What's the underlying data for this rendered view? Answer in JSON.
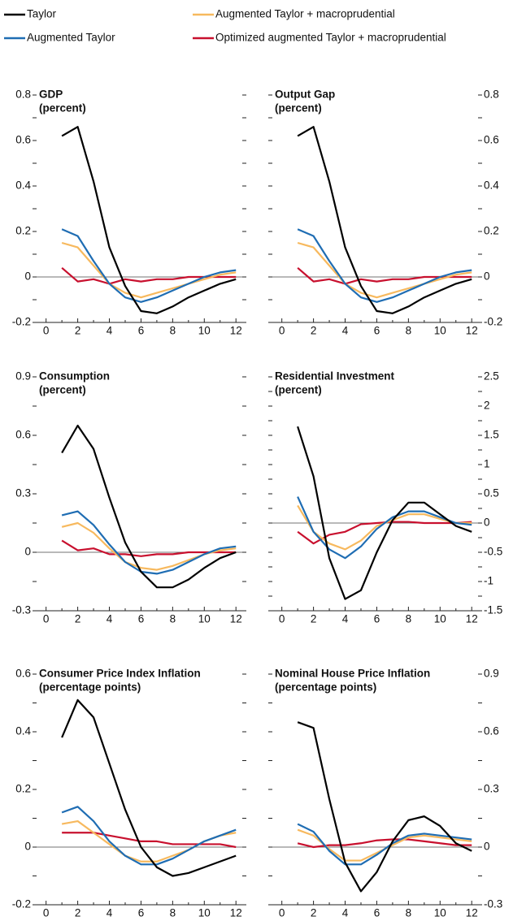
{
  "chart_data": [
    {
      "type": "line",
      "title": "GDP",
      "subtitle": "(percent)",
      "yaxis": "left",
      "x": [
        1,
        2,
        3,
        4,
        5,
        6,
        7,
        8,
        9,
        10,
        11,
        12
      ],
      "xlim": [
        -0.6,
        12.4
      ],
      "xticks": [
        0,
        2,
        4,
        6,
        8,
        10,
        12
      ],
      "xminor": [
        1,
        3,
        5,
        7,
        9,
        11
      ],
      "ylim": [
        -0.2,
        0.8
      ],
      "yticks": [
        -0.2,
        0,
        0.2,
        0.4,
        0.6,
        0.8
      ],
      "yminor": [
        -0.1,
        0.1,
        0.3,
        0.5,
        0.7
      ],
      "series": [
        {
          "name": "Taylor",
          "color": "#000000",
          "values": [
            0.62,
            0.66,
            0.42,
            0.13,
            -0.04,
            -0.15,
            -0.16,
            -0.13,
            -0.09,
            -0.06,
            -0.03,
            -0.01
          ]
        },
        {
          "name": "Augmented Taylor",
          "color": "#1f6db3",
          "values": [
            0.21,
            0.18,
            0.07,
            -0.03,
            -0.09,
            -0.11,
            -0.09,
            -0.06,
            -0.03,
            0.0,
            0.02,
            0.03
          ]
        },
        {
          "name": "Augmented Taylor + macroprudential",
          "color": "#f7b95e",
          "values": [
            0.15,
            0.13,
            0.05,
            -0.03,
            -0.07,
            -0.09,
            -0.07,
            -0.05,
            -0.03,
            -0.01,
            0.01,
            0.02
          ]
        },
        {
          "name": "Optimized augmented Taylor + macroprudential",
          "color": "#c8102e",
          "values": [
            0.04,
            -0.02,
            -0.01,
            -0.03,
            -0.01,
            -0.02,
            -0.01,
            -0.01,
            0.0,
            0.0,
            0.0,
            0.0
          ]
        }
      ]
    },
    {
      "type": "line",
      "title": "Output Gap",
      "subtitle": "(percent)",
      "yaxis": "right",
      "x": [
        1,
        2,
        3,
        4,
        5,
        6,
        7,
        8,
        9,
        10,
        11,
        12
      ],
      "xlim": [
        -0.6,
        12.4
      ],
      "xticks": [
        0,
        2,
        4,
        6,
        8,
        10,
        12
      ],
      "xminor": [
        1,
        3,
        5,
        7,
        9,
        11
      ],
      "ylim": [
        -0.2,
        0.8
      ],
      "yticks": [
        -0.2,
        0,
        0.2,
        0.4,
        0.6,
        0.8
      ],
      "yminor": [
        -0.1,
        0.1,
        0.3,
        0.5,
        0.7
      ],
      "series": [
        {
          "name": "Taylor",
          "color": "#000000",
          "values": [
            0.62,
            0.66,
            0.42,
            0.13,
            -0.04,
            -0.15,
            -0.16,
            -0.13,
            -0.09,
            -0.06,
            -0.03,
            -0.01
          ]
        },
        {
          "name": "Augmented Taylor",
          "color": "#1f6db3",
          "values": [
            0.21,
            0.18,
            0.07,
            -0.03,
            -0.09,
            -0.11,
            -0.09,
            -0.06,
            -0.03,
            0.0,
            0.02,
            0.03
          ]
        },
        {
          "name": "Augmented Taylor + macroprudential",
          "color": "#f7b95e",
          "values": [
            0.15,
            0.13,
            0.05,
            -0.03,
            -0.07,
            -0.09,
            -0.07,
            -0.05,
            -0.03,
            -0.01,
            0.01,
            0.02
          ]
        },
        {
          "name": "Optimized augmented Taylor + macroprudential",
          "color": "#c8102e",
          "values": [
            0.04,
            -0.02,
            -0.01,
            -0.03,
            -0.01,
            -0.02,
            -0.01,
            -0.01,
            0.0,
            0.0,
            0.0,
            0.0
          ]
        }
      ]
    },
    {
      "type": "line",
      "title": "Consumption",
      "subtitle": "(percent)",
      "yaxis": "left",
      "x": [
        1,
        2,
        3,
        4,
        5,
        6,
        7,
        8,
        9,
        10,
        11,
        12
      ],
      "xlim": [
        -0.6,
        12.4
      ],
      "xticks": [
        0,
        2,
        4,
        6,
        8,
        10,
        12
      ],
      "xminor": [
        1,
        3,
        5,
        7,
        9,
        11
      ],
      "ylim": [
        -0.3,
        0.9
      ],
      "yticks": [
        -0.3,
        0,
        0.3,
        0.6,
        0.9
      ],
      "yminor": [
        -0.15,
        0.15,
        0.45,
        0.75
      ],
      "series": [
        {
          "name": "Taylor",
          "color": "#000000",
          "values": [
            0.51,
            0.65,
            0.53,
            0.28,
            0.05,
            -0.1,
            -0.18,
            -0.18,
            -0.14,
            -0.08,
            -0.03,
            0.0
          ]
        },
        {
          "name": "Augmented Taylor",
          "color": "#1f6db3",
          "values": [
            0.19,
            0.21,
            0.14,
            0.04,
            -0.05,
            -0.1,
            -0.11,
            -0.09,
            -0.05,
            -0.01,
            0.02,
            0.03
          ]
        },
        {
          "name": "Augmented Taylor + macroprudential",
          "color": "#f7b95e",
          "values": [
            0.13,
            0.15,
            0.1,
            0.02,
            -0.05,
            -0.08,
            -0.09,
            -0.07,
            -0.04,
            -0.01,
            0.01,
            0.02
          ]
        },
        {
          "name": "Optimized augmented Taylor + macroprudential",
          "color": "#c8102e",
          "values": [
            0.06,
            0.01,
            0.02,
            -0.01,
            -0.01,
            -0.02,
            -0.01,
            -0.01,
            0.0,
            0.0,
            0.0,
            0.0
          ]
        }
      ]
    },
    {
      "type": "line",
      "title": "Residential Investment",
      "subtitle": "(percent)",
      "yaxis": "right",
      "x": [
        1,
        2,
        3,
        4,
        5,
        6,
        7,
        8,
        9,
        10,
        11,
        12
      ],
      "xlim": [
        -0.6,
        12.4
      ],
      "xticks": [
        0,
        2,
        4,
        6,
        8,
        10,
        12
      ],
      "xminor": [
        1,
        3,
        5,
        7,
        9,
        11
      ],
      "ylim": [
        -1.5,
        2.5
      ],
      "yticks": [
        -1.5,
        -1.0,
        -0.5,
        0,
        0.5,
        1.0,
        1.5,
        2.0,
        2.5
      ],
      "yminor": [
        -1.25,
        -0.75,
        -0.25,
        0.25,
        0.75,
        1.25,
        1.75,
        2.25
      ],
      "series": [
        {
          "name": "Taylor",
          "color": "#000000",
          "values": [
            1.65,
            0.8,
            -0.6,
            -1.3,
            -1.15,
            -0.5,
            0.05,
            0.35,
            0.35,
            0.15,
            -0.05,
            -0.15
          ]
        },
        {
          "name": "Augmented Taylor",
          "color": "#1f6db3",
          "values": [
            0.45,
            -0.15,
            -0.45,
            -0.6,
            -0.4,
            -0.1,
            0.1,
            0.2,
            0.2,
            0.1,
            0.0,
            -0.03
          ]
        },
        {
          "name": "Augmented Taylor + macroprudential",
          "color": "#f7b95e",
          "values": [
            0.3,
            -0.15,
            -0.35,
            -0.45,
            -0.3,
            -0.05,
            0.05,
            0.15,
            0.15,
            0.07,
            0.0,
            0.0
          ]
        },
        {
          "name": "Optimized augmented Taylor + macroprudential",
          "color": "#c8102e",
          "values": [
            -0.15,
            -0.35,
            -0.2,
            -0.15,
            -0.02,
            0.0,
            0.02,
            0.02,
            0.0,
            0.0,
            0.0,
            0.02
          ]
        }
      ]
    },
    {
      "type": "line",
      "title": "Consumer Price Index Inflation",
      "subtitle": "(percentage points)",
      "yaxis": "left",
      "x": [
        1,
        2,
        3,
        4,
        5,
        6,
        7,
        8,
        9,
        10,
        11,
        12
      ],
      "xlim": [
        -0.6,
        12.4
      ],
      "xticks": [
        0,
        2,
        4,
        6,
        8,
        10,
        12
      ],
      "xminor": [
        1,
        3,
        5,
        7,
        9,
        11
      ],
      "ylim": [
        -0.2,
        0.6
      ],
      "yticks": [
        -0.2,
        0,
        0.2,
        0.4,
        0.6
      ],
      "yminor": [
        -0.1,
        0.1,
        0.3,
        0.5
      ],
      "series": [
        {
          "name": "Taylor",
          "color": "#000000",
          "values": [
            0.38,
            0.51,
            0.45,
            0.29,
            0.13,
            0.0,
            -0.07,
            -0.1,
            -0.09,
            -0.07,
            -0.05,
            -0.03
          ]
        },
        {
          "name": "Augmented Taylor",
          "color": "#1f6db3",
          "values": [
            0.12,
            0.14,
            0.09,
            0.02,
            -0.03,
            -0.06,
            -0.06,
            -0.04,
            -0.01,
            0.02,
            0.04,
            0.06
          ]
        },
        {
          "name": "Augmented Taylor + macroprudential",
          "color": "#f7b95e",
          "values": [
            0.08,
            0.09,
            0.05,
            0.01,
            -0.03,
            -0.05,
            -0.05,
            -0.03,
            -0.01,
            0.02,
            0.04,
            0.05
          ]
        },
        {
          "name": "Optimized augmented Taylor + macroprudential",
          "color": "#c8102e",
          "values": [
            0.05,
            0.05,
            0.05,
            0.04,
            0.03,
            0.02,
            0.02,
            0.01,
            0.01,
            0.01,
            0.01,
            0.0
          ]
        }
      ]
    },
    {
      "type": "line",
      "title": "Nominal House Price Inflation",
      "subtitle": "(percentage points)",
      "yaxis": "right",
      "x": [
        1,
        2,
        3,
        4,
        5,
        6,
        7,
        8,
        9,
        10,
        11,
        12
      ],
      "xlim": [
        -0.6,
        12.4
      ],
      "xticks": [
        0,
        2,
        4,
        6,
        8,
        10,
        12
      ],
      "xminor": [
        1,
        3,
        5,
        7,
        9,
        11
      ],
      "ylim": [
        -0.3,
        0.9
      ],
      "yticks": [
        -0.3,
        0,
        0.3,
        0.6,
        0.9
      ],
      "yminor": [
        -0.15,
        0.15,
        0.45,
        0.75
      ],
      "series": [
        {
          "name": "Taylor",
          "color": "#000000",
          "values": [
            0.65,
            0.62,
            0.25,
            -0.08,
            -0.23,
            -0.13,
            0.03,
            0.14,
            0.16,
            0.11,
            0.02,
            -0.02
          ]
        },
        {
          "name": "Augmented Taylor",
          "color": "#1f6db3",
          "values": [
            0.12,
            0.08,
            -0.02,
            -0.09,
            -0.09,
            -0.04,
            0.02,
            0.06,
            0.07,
            0.06,
            0.05,
            0.04
          ]
        },
        {
          "name": "Augmented Taylor + macroprudential",
          "color": "#f7b95e",
          "values": [
            0.09,
            0.06,
            -0.01,
            -0.07,
            -0.07,
            -0.03,
            0.01,
            0.05,
            0.06,
            0.05,
            0.04,
            0.03
          ]
        },
        {
          "name": "Optimized augmented Taylor + macroprudential",
          "color": "#c8102e",
          "values": [
            0.02,
            0.0,
            0.01,
            0.01,
            0.02,
            0.035,
            0.04,
            0.04,
            0.03,
            0.02,
            0.01,
            0.01
          ]
        }
      ]
    }
  ]
}
